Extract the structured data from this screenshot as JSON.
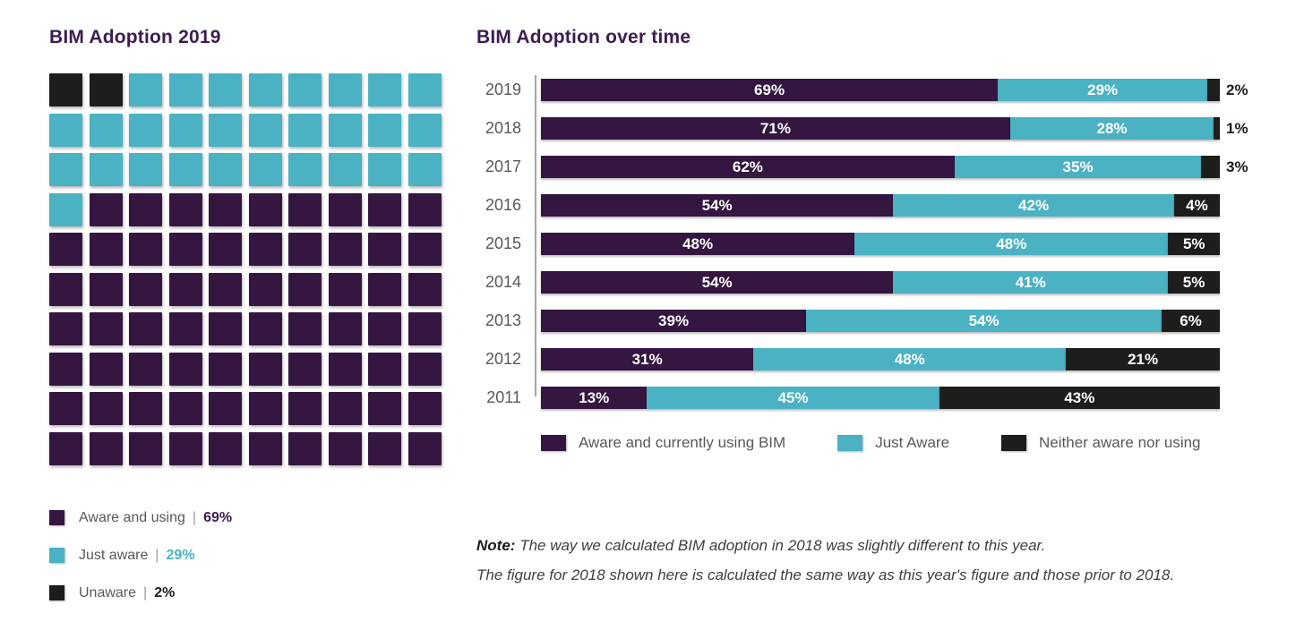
{
  "left_panel": {
    "separator": "|",
    "legend": [
      {
        "label": "Aware and using",
        "value": "69%",
        "value_color": "#3D1C52"
      },
      {
        "label": "Just aware",
        "value": "29%",
        "value_color": "#4BB2C4"
      },
      {
        "label": "Unaware",
        "value": "2%",
        "value_color": "#1D1D1B"
      }
    ]
  },
  "right_panel": {
    "note": {
      "label": "Note:",
      "line1": "The way we calculated BIM adoption in 2018 was slightly different to this year.",
      "line2": "The figure for 2018 shown here is calculated the same way as this year's figure and those prior to 2018."
    }
  },
  "chart_data": [
    {
      "type": "waffle",
      "title": "BIM Adoption 2019",
      "grid": "10x10",
      "categories": [
        "Aware and using",
        "Just aware",
        "Unaware"
      ],
      "values": [
        69,
        29,
        2
      ],
      "colors": [
        "#341640",
        "#4BB2C4",
        "#1D1D1B"
      ],
      "fill_order_from_top": [
        "Unaware",
        "Just aware",
        "Aware and using"
      ]
    },
    {
      "type": "bar",
      "orientation": "horizontal",
      "stacked": true,
      "title": "BIM Adoption over time",
      "categories": [
        "2019",
        "2018",
        "2017",
        "2016",
        "2015",
        "2014",
        "2013",
        "2012",
        "2011"
      ],
      "series": [
        {
          "name": "Aware and currently using BIM",
          "color": "#341640",
          "values": [
            69,
            71,
            62,
            54,
            48,
            54,
            39,
            31,
            13
          ]
        },
        {
          "name": "Just Aware",
          "color": "#4BB2C4",
          "values": [
            29,
            28,
            35,
            42,
            48,
            41,
            54,
            48,
            45
          ]
        },
        {
          "name": "Neither aware nor using",
          "color": "#1D1D1B",
          "values": [
            2,
            1,
            3,
            4,
            5,
            5,
            6,
            21,
            43
          ]
        }
      ],
      "value_suffix": "%",
      "label_outside_threshold": 3,
      "xlim": [
        0,
        100
      ],
      "grid_lines": false,
      "legend_position": "bottom"
    }
  ]
}
